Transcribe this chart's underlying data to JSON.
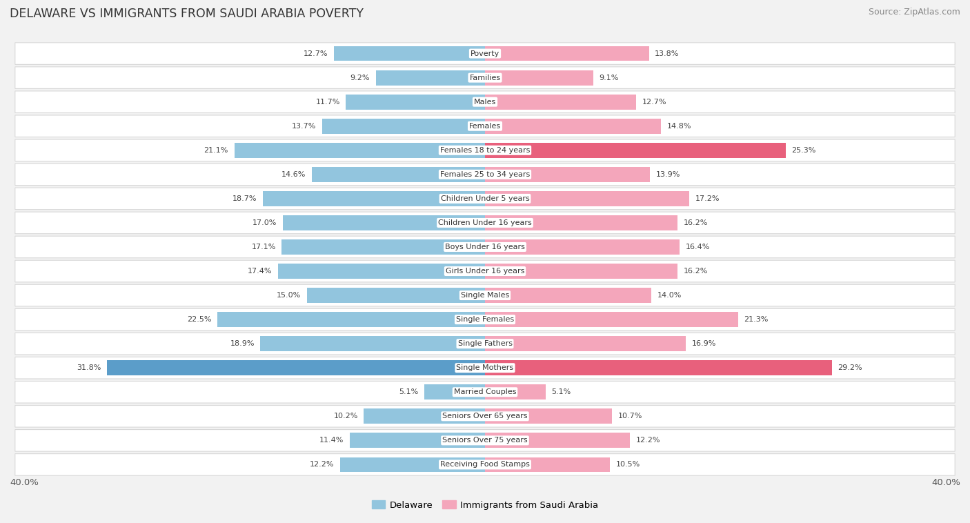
{
  "title": "DELAWARE VS IMMIGRANTS FROM SAUDI ARABIA POVERTY",
  "source": "Source: ZipAtlas.com",
  "categories": [
    "Poverty",
    "Families",
    "Males",
    "Females",
    "Females 18 to 24 years",
    "Females 25 to 34 years",
    "Children Under 5 years",
    "Children Under 16 years",
    "Boys Under 16 years",
    "Girls Under 16 years",
    "Single Males",
    "Single Females",
    "Single Fathers",
    "Single Mothers",
    "Married Couples",
    "Seniors Over 65 years",
    "Seniors Over 75 years",
    "Receiving Food Stamps"
  ],
  "delaware": [
    12.7,
    9.2,
    11.7,
    13.7,
    21.1,
    14.6,
    18.7,
    17.0,
    17.1,
    17.4,
    15.0,
    22.5,
    18.9,
    31.8,
    5.1,
    10.2,
    11.4,
    12.2
  ],
  "immigrants": [
    13.8,
    9.1,
    12.7,
    14.8,
    25.3,
    13.9,
    17.2,
    16.2,
    16.4,
    16.2,
    14.0,
    21.3,
    16.9,
    29.2,
    5.1,
    10.7,
    12.2,
    10.5
  ],
  "delaware_color": "#92c5de",
  "immigrants_color": "#f4a6bb",
  "delaware_highlight": "#5b9dc9",
  "immigrants_highlight": "#e8607c",
  "axis_limit": 40.0,
  "background_color": "#f2f2f2",
  "title_color": "#333333",
  "bar_height": 0.62,
  "font_size_label": 8.0,
  "font_size_value": 8.0,
  "font_size_title": 12.5,
  "font_size_source": 9.0,
  "font_size_axis": 9.5,
  "legend_fontsize": 9.5
}
